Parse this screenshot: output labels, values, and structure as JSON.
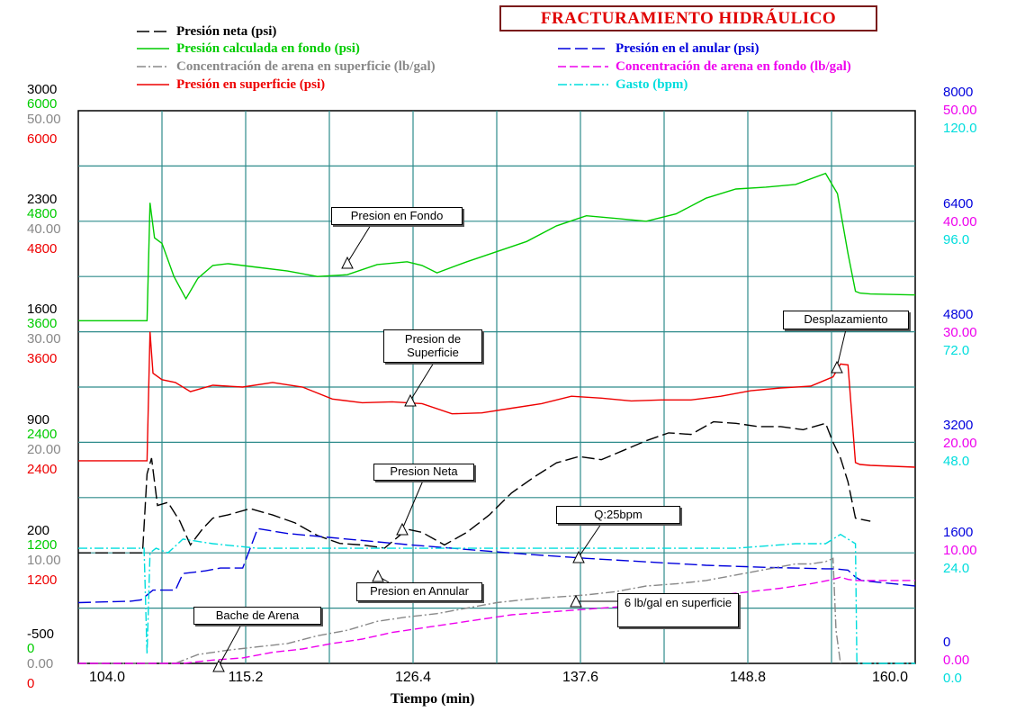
{
  "chart_title": "FRACTURAMIENTO HIDRÁULICO",
  "legend": [
    {
      "label": "Presión neta (psi)",
      "color": "#000000",
      "dash": "long"
    },
    {
      "label": "Presión calculada en fondo (psi)",
      "color": "#00cc00",
      "dash": "solid"
    },
    {
      "label": "Concentración de arena en superficie (lb/gal)",
      "color": "#888888",
      "dash": "dashdot"
    },
    {
      "label": "Presión en superficie (psi)",
      "color": "#ee0000",
      "dash": "solid"
    },
    {
      "label": "Presión en el anular (psi)",
      "color": "#0000dd",
      "dash": "long"
    },
    {
      "label": "Concentración de arena en fondo (lb/gal)",
      "color": "#ee00ee",
      "dash": "dashed"
    },
    {
      "label": "Gasto (bpm)",
      "color": "#00dddd",
      "dash": "dashdot"
    }
  ],
  "left_axes": {
    "neta": [
      "3000",
      "2300",
      "1600",
      "900",
      "200",
      "-500"
    ],
    "fondo": [
      "6000",
      "4800",
      "3600",
      "2400",
      "1200",
      "0"
    ],
    "arena_sup": [
      "50.00",
      "40.00",
      "30.00",
      "20.00",
      "10.00",
      "0.00"
    ],
    "superficie": [
      "6000",
      "4800",
      "3600",
      "2400",
      "1200",
      "0"
    ]
  },
  "right_axes": {
    "anular": [
      "8000",
      "6400",
      "4800",
      "3200",
      "1600",
      "0"
    ],
    "arena_fondo": [
      "50.00",
      "40.00",
      "30.00",
      "20.00",
      "10.00",
      "0.00"
    ],
    "gasto": [
      "120.0",
      "96.0",
      "72.0",
      "48.0",
      "24.0",
      "0.0"
    ]
  },
  "annotations": {
    "fondo": "Presion en Fondo",
    "superficie": "Presion de Superficie",
    "neta": "Presion Neta",
    "gasto": "Q:25bpm",
    "anular": "Presion en Annular",
    "bache": "Bache de Arena",
    "arena6": "6 lb/gal en superficie",
    "desplazamiento": "Desplazamiento"
  },
  "chart_data": {
    "type": "line",
    "title": "FRACTURAMIENTO HIDRÁULICO",
    "xlabel": "Tiempo (min)",
    "xlim": [
      104.0,
      160.0
    ],
    "x_ticks": [
      "104.0",
      "115.2",
      "126.4",
      "137.6",
      "148.8",
      "160.0"
    ],
    "grid": true,
    "series": [
      {
        "name": "Presión calculada en fondo (psi)",
        "color": "#00cc00",
        "ylim": [
          0,
          6000
        ],
        "x": [
          104,
          108.6,
          108.8,
          109.1,
          109.6,
          110.4,
          111.2,
          112.0,
          113.0,
          114.0,
          116.0,
          118.0,
          120.0,
          122.0,
          124.0,
          126.0,
          127.0,
          128.0,
          130.0,
          132.0,
          134.0,
          136.0,
          138.0,
          140.0,
          142.0,
          144.0,
          146.0,
          148.0,
          150.0,
          152.0,
          154.0,
          154.8,
          155.5,
          156.0,
          156.3,
          157.0,
          160.0
        ],
        "values": [
          3720,
          3720,
          5000,
          4620,
          4560,
          4200,
          3960,
          4180,
          4320,
          4340,
          4300,
          4260,
          4200,
          4220,
          4330,
          4360,
          4320,
          4240,
          4360,
          4470,
          4580,
          4750,
          4860,
          4830,
          4800,
          4880,
          5050,
          5150,
          5170,
          5200,
          5320,
          5100,
          4450,
          4040,
          4020,
          4010,
          4000
        ]
      },
      {
        "name": "Presión en superficie (psi)",
        "color": "#ee0000",
        "ylim": [
          0,
          6000
        ],
        "x": [
          104,
          108.6,
          108.8,
          109.0,
          109.6,
          110.5,
          111.5,
          113.0,
          115.0,
          117.0,
          119.0,
          121.0,
          123.0,
          125.0,
          127.0,
          129.0,
          131.0,
          133.0,
          135.0,
          137.0,
          139.0,
          141.0,
          143.0,
          145.0,
          147.0,
          149.0,
          151.0,
          153.0,
          154.5,
          155.0,
          155.5,
          156.0,
          156.3,
          157.0,
          160.0
        ],
        "values": [
          2200,
          2200,
          3600,
          3150,
          3080,
          3050,
          2950,
          3020,
          3000,
          3050,
          3000,
          2870,
          2830,
          2840,
          2820,
          2710,
          2720,
          2770,
          2820,
          2900,
          2880,
          2850,
          2860,
          2860,
          2900,
          2960,
          2990,
          3010,
          3110,
          3250,
          3240,
          2180,
          2160,
          2150,
          2130
        ]
      },
      {
        "name": "Presión neta (psi)",
        "color": "#000000",
        "ylim": [
          -500,
          3000
        ],
        "x": [
          104,
          108.3,
          108.6,
          108.9,
          109.3,
          110.0,
          110.8,
          111.5,
          112.3,
          113.0,
          114.0,
          115.5,
          117.0,
          118.5,
          120.0,
          121.5,
          123.0,
          124.5,
          126.0,
          127.0,
          128.5,
          130.0,
          131.5,
          133.0,
          134.5,
          136.0,
          137.5,
          139.0,
          140.5,
          142.0,
          143.5,
          145.0,
          146.5,
          148.0,
          149.5,
          151.0,
          152.5,
          154.0,
          154.5,
          155.0,
          155.5,
          156.0,
          157.0
        ],
        "values": [
          200,
          200,
          700,
          800,
          500,
          520,
          400,
          250,
          350,
          420,
          440,
          480,
          440,
          390,
          310,
          260,
          250,
          230,
          350,
          330,
          250,
          330,
          440,
          580,
          680,
          770,
          810,
          790,
          850,
          910,
          960,
          950,
          1030,
          1020,
          1000,
          1000,
          980,
          1020,
          900,
          800,
          650,
          420,
          400
        ]
      },
      {
        "name": "Presión en el anular (psi)",
        "color": "#0000dd",
        "ylim": [
          0,
          8000
        ],
        "x": [
          104,
          107.5,
          108.2,
          109.0,
          110.5,
          111.0,
          112.5,
          113.5,
          114.0,
          114.5,
          115.0,
          116.0,
          118.0,
          122.0,
          126.0,
          130.0,
          134.0,
          138.0,
          142.0,
          146.0,
          150.0,
          154.0,
          154.6,
          155.5,
          156.0,
          156.4,
          160.0
        ],
        "values": [
          880,
          900,
          920,
          1060,
          1060,
          1300,
          1340,
          1380,
          1380,
          1380,
          1380,
          1950,
          1880,
          1800,
          1720,
          1650,
          1580,
          1520,
          1470,
          1420,
          1390,
          1370,
          1370,
          1350,
          1250,
          1200,
          1120
        ]
      },
      {
        "name": "Gasto (bpm)",
        "color": "#00dddd",
        "ylim": [
          0,
          120
        ],
        "x": [
          104,
          108.4,
          108.6,
          108.8,
          109.2,
          110.0,
          111.0,
          113.0,
          116.0,
          120.0,
          124.0,
          128.0,
          132.0,
          136.0,
          140.0,
          144.0,
          148.0,
          152.0,
          154.0,
          155.0,
          155.5,
          156.0,
          156.1,
          160.0
        ],
        "values": [
          25,
          25,
          2,
          24,
          25,
          24,
          27,
          26,
          25,
          25,
          25,
          25,
          25,
          25,
          25,
          25,
          25,
          26,
          26,
          28,
          27,
          26,
          0,
          0
        ]
      },
      {
        "name": "Concentración de arena en superficie (lb/gal)",
        "color": "#888888",
        "ylim": [
          0,
          50
        ],
        "x": [
          104,
          110.5,
          112.0,
          114.0,
          116.0,
          118.0,
          120.0,
          122.0,
          124.0,
          126.0,
          128.0,
          130.0,
          132.0,
          134.0,
          136.0,
          138.0,
          140.0,
          142.0,
          144.0,
          146.0,
          148.0,
          150.0,
          152.0,
          153.0,
          154.0,
          154.5,
          154.7,
          155.0
        ],
        "values": [
          0,
          0,
          0.8,
          1.2,
          1.5,
          1.8,
          2.5,
          3.0,
          3.8,
          4.2,
          4.5,
          5.0,
          5.5,
          5.8,
          6.0,
          6.2,
          6.5,
          7.0,
          7.2,
          7.5,
          8.0,
          8.5,
          9.0,
          9.0,
          9.2,
          9.5,
          3.0,
          0
        ]
      },
      {
        "name": "Concentración de arena en fondo (lb/gal)",
        "color": "#ee00ee",
        "ylim": [
          0,
          50
        ],
        "x": [
          104,
          111.0,
          113.0,
          115.0,
          117.0,
          119.0,
          121.0,
          123.0,
          125.0,
          127.0,
          129.0,
          131.0,
          133.0,
          135.0,
          137.0,
          139.0,
          141.0,
          143.0,
          145.0,
          147.0,
          149.0,
          151.0,
          153.0,
          154.5,
          155.0,
          155.5,
          156.0,
          160.0
        ],
        "values": [
          0,
          0,
          0.3,
          0.5,
          1.0,
          1.3,
          1.8,
          2.2,
          2.8,
          3.2,
          3.6,
          4.0,
          4.4,
          4.6,
          4.8,
          5.0,
          5.2,
          5.6,
          5.9,
          6.2,
          6.5,
          6.8,
          7.2,
          7.6,
          7.8,
          7.6,
          7.5,
          7.5
        ]
      }
    ]
  }
}
